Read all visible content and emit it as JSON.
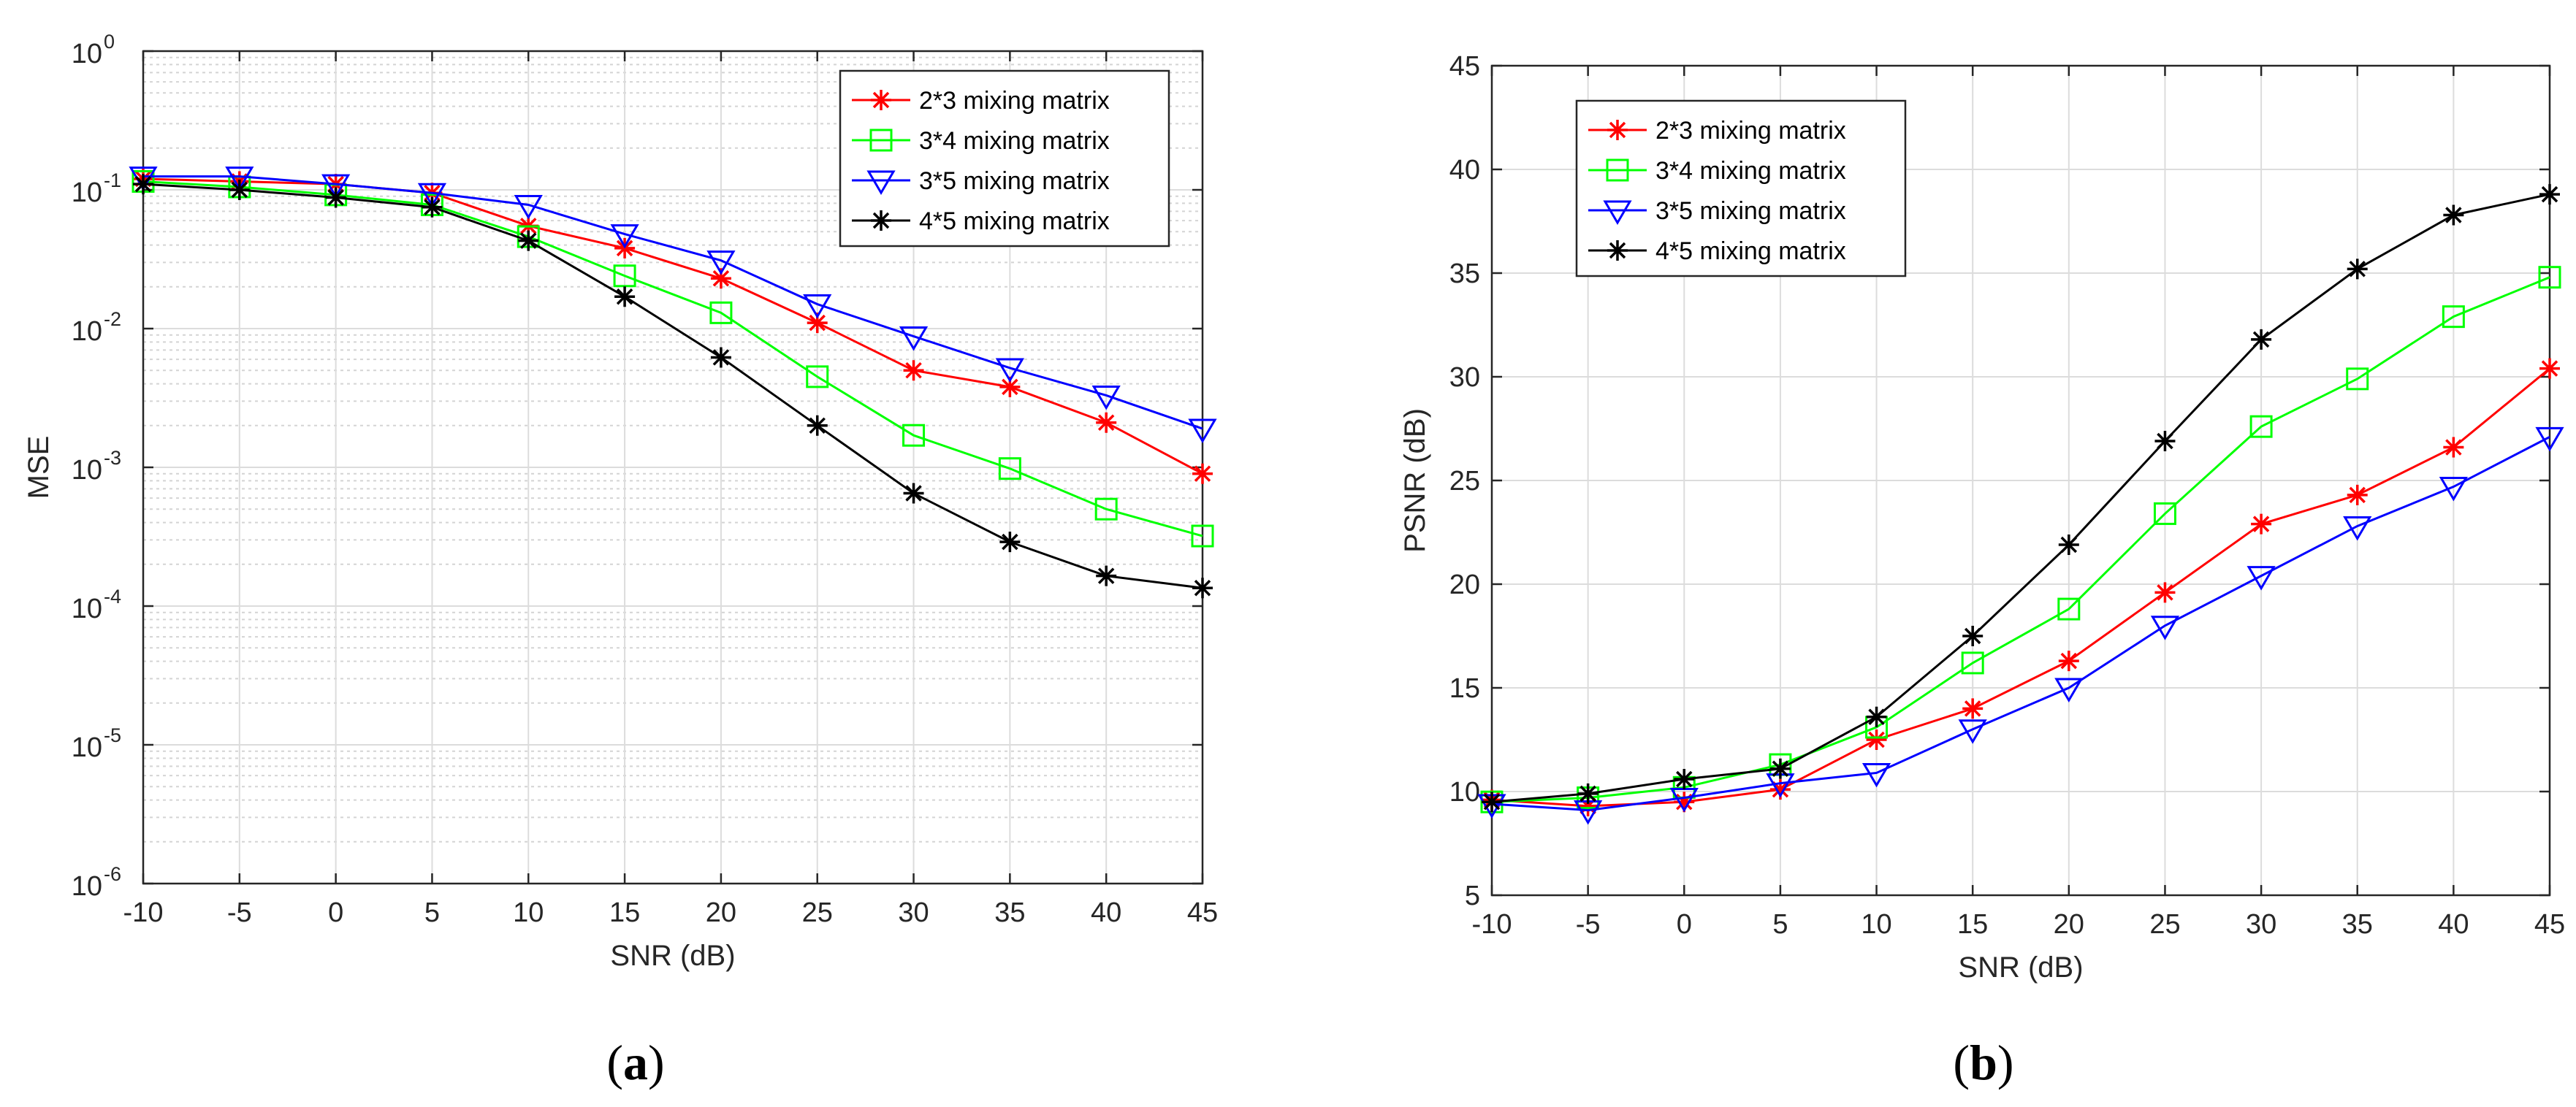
{
  "chart_data": [
    {
      "type": "line",
      "panel_label": "a",
      "xlabel": "SNR (dB)",
      "ylabel": "MSE",
      "yscale": "log",
      "xlim": [
        -10,
        45
      ],
      "ylim": [
        1e-06,
        1
      ],
      "x_ticks": [
        -10,
        -5,
        0,
        5,
        10,
        15,
        20,
        25,
        30,
        35,
        40,
        45
      ],
      "x_tick_labels": [
        "-10",
        "-5",
        "0",
        "5",
        "10",
        "15",
        "20",
        "25",
        "30",
        "35",
        "40",
        "45"
      ],
      "y_ticks": [
        1e-06,
        1e-05,
        0.0001,
        0.001,
        0.01,
        0.1,
        1
      ],
      "y_tick_labels": [
        {
          "base": "10",
          "exp": "-6"
        },
        {
          "base": "10",
          "exp": "-5"
        },
        {
          "base": "10",
          "exp": "-4"
        },
        {
          "base": "10",
          "exp": "-3"
        },
        {
          "base": "10",
          "exp": "-2"
        },
        {
          "base": "10",
          "exp": "-1"
        },
        {
          "base": "10",
          "exp": "0"
        }
      ],
      "grid": true,
      "minor_grid": true,
      "legend_position": "top-right",
      "x": [
        -10,
        -5,
        0,
        5,
        10,
        15,
        20,
        25,
        30,
        35,
        40,
        45
      ],
      "series": [
        {
          "name": "2*3 mixing matrix",
          "color": "#ff0000",
          "marker": "asterisk",
          "values": [
            0.12,
            0.115,
            0.11,
            0.095,
            0.055,
            0.038,
            0.023,
            0.011,
            0.005,
            0.0038,
            0.0021,
            0.0009
          ]
        },
        {
          "name": "3*4 mixing matrix",
          "color": "#00ff00",
          "marker": "square",
          "values": [
            0.115,
            0.105,
            0.092,
            0.078,
            0.046,
            0.024,
            0.013,
            0.0045,
            0.0017,
            0.00098,
            0.0005,
            0.00032
          ]
        },
        {
          "name": "3*5 mixing matrix",
          "color": "#0000ff",
          "marker": "triangle-down",
          "values": [
            0.125,
            0.125,
            0.11,
            0.095,
            0.078,
            0.048,
            0.031,
            0.015,
            0.0088,
            0.0052,
            0.0033,
            0.0019
          ]
        },
        {
          "name": "4*5 mixing matrix",
          "color": "#000000",
          "marker": "asterisk",
          "values": [
            0.11,
            0.1,
            0.088,
            0.075,
            0.043,
            0.017,
            0.0062,
            0.002,
            0.00065,
            0.00029,
            0.000165,
            0.000135
          ]
        }
      ]
    },
    {
      "type": "line",
      "panel_label": "b",
      "xlabel": "SNR (dB)",
      "ylabel": "PSNR (dB)",
      "yscale": "linear",
      "xlim": [
        -10,
        45
      ],
      "ylim": [
        5,
        45
      ],
      "x_ticks": [
        -10,
        -5,
        0,
        5,
        10,
        15,
        20,
        25,
        30,
        35,
        40,
        45
      ],
      "x_tick_labels": [
        "-10",
        "-5",
        "0",
        "5",
        "10",
        "15",
        "20",
        "25",
        "30",
        "35",
        "40",
        "45"
      ],
      "y_ticks": [
        5,
        10,
        15,
        20,
        25,
        30,
        35,
        40,
        45
      ],
      "y_tick_labels": [
        "5",
        "10",
        "15",
        "20",
        "25",
        "30",
        "35",
        "40",
        "45"
      ],
      "grid": true,
      "minor_grid": false,
      "legend_position": "top-left",
      "x": [
        -10,
        -5,
        0,
        5,
        10,
        15,
        20,
        25,
        30,
        35,
        40,
        45
      ],
      "series": [
        {
          "name": "2*3 mixing matrix",
          "color": "#ff0000",
          "marker": "asterisk",
          "values": [
            9.6,
            9.3,
            9.5,
            10.1,
            12.5,
            14.0,
            16.3,
            19.6,
            22.9,
            24.3,
            26.6,
            30.4
          ]
        },
        {
          "name": "3*4 mixing matrix",
          "color": "#00ff00",
          "marker": "square",
          "values": [
            9.5,
            9.7,
            10.2,
            11.3,
            13.1,
            16.2,
            18.8,
            23.4,
            27.6,
            29.9,
            32.9,
            34.8
          ]
        },
        {
          "name": "3*5 mixing matrix",
          "color": "#0000ff",
          "marker": "triangle-down",
          "values": [
            9.4,
            9.1,
            9.7,
            10.4,
            10.9,
            13.0,
            15.0,
            18.0,
            20.4,
            22.8,
            24.7,
            27.1
          ]
        },
        {
          "name": "4*5 mixing matrix",
          "color": "#000000",
          "marker": "asterisk",
          "values": [
            9.5,
            9.9,
            10.6,
            11.1,
            13.6,
            17.5,
            21.9,
            26.9,
            31.8,
            35.2,
            37.8,
            38.8
          ]
        }
      ]
    }
  ]
}
